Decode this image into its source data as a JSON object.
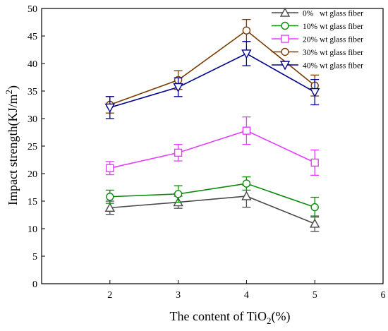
{
  "chart_data": {
    "type": "line",
    "xlabel_main": "The content of TiO",
    "xlabel_sub": "2",
    "xlabel_end": "(%)",
    "ylabel_main": "Impact strength(KJ/m",
    "ylabel_sup": "2",
    "ylabel_end": ")",
    "xlim": [
      1.0,
      6.0
    ],
    "ylim": [
      0,
      50
    ],
    "x_ticks": [
      2,
      3,
      4,
      5,
      6
    ],
    "y_ticks": [
      0,
      5,
      10,
      15,
      20,
      25,
      30,
      35,
      40,
      45,
      50
    ],
    "x_tick_labels": [
      "2",
      "3",
      "4",
      "5",
      "6"
    ],
    "y_tick_labels": [
      "0",
      "5",
      "10",
      "15",
      "20",
      "25",
      "30",
      "35",
      "40",
      "45",
      "50"
    ],
    "x": [
      2,
      3,
      4,
      5
    ],
    "grid": false,
    "legend_position": "top-right",
    "series": [
      {
        "name": "0%   wt glass fiber",
        "marker": "triangle-up",
        "color": "#4a4a4a",
        "values": [
          13.8,
          14.8,
          15.9,
          10.9
        ],
        "errors": [
          1.2,
          1.1,
          2.0,
          1.4
        ]
      },
      {
        "name": "10% wt glass fiber",
        "marker": "circle",
        "color": "#0a8a0a",
        "values": [
          15.8,
          16.3,
          18.2,
          13.9
        ],
        "errors": [
          1.2,
          1.5,
          1.2,
          1.8
        ]
      },
      {
        "name": "20% wt glass fiber",
        "marker": "square",
        "color": "#e040fb",
        "values": [
          21.0,
          23.8,
          27.8,
          22.0
        ],
        "errors": [
          1.2,
          1.5,
          2.5,
          2.3
        ]
      },
      {
        "name": "30% wt glass fiber",
        "marker": "circle",
        "color": "#7a3b00",
        "values": [
          32.5,
          37.0,
          46.0,
          36.0
        ],
        "errors": [
          1.5,
          1.7,
          2.0,
          1.9
        ]
      },
      {
        "name": "40% wt glass fiber",
        "marker": "triangle-down",
        "color": "#00008b",
        "values": [
          32.0,
          35.7,
          41.8,
          34.8
        ],
        "errors": [
          2.0,
          1.7,
          2.2,
          2.3
        ]
      }
    ]
  }
}
